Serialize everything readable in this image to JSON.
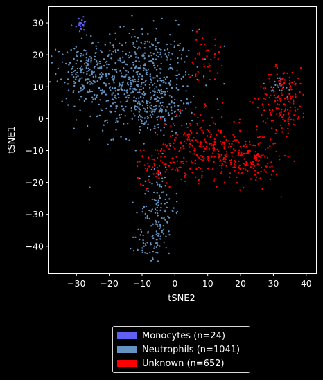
{
  "chart_data": {
    "type": "scatter",
    "xlabel": "tSNE2",
    "ylabel": "tSNE1",
    "xlim": [
      -38.5,
      43
    ],
    "ylim": [
      -48.5,
      35
    ],
    "xticks": [
      -30,
      -20,
      -10,
      0,
      10,
      20,
      30,
      40
    ],
    "yticks": [
      30,
      20,
      10,
      0,
      -10,
      -20,
      -30,
      -40
    ],
    "xtick_labels": [
      "−30",
      "−20",
      "−10",
      "0",
      "10",
      "20",
      "30",
      "40"
    ],
    "ytick_labels": [
      "30",
      "20",
      "10",
      "0",
      "−10",
      "−20",
      "−30",
      "−40"
    ],
    "legend_position": "below",
    "series": [
      {
        "name": "Monocytes (n=24)",
        "color": "#6060f0",
        "count": 24,
        "clusters": [
          {
            "cx": -28.5,
            "cy": 29.5,
            "sx": 1.0,
            "sy": 1.0,
            "n": 24
          }
        ]
      },
      {
        "name": "Neutrophils (n=1041)",
        "color": "#6393c0",
        "count": 1041,
        "clusters": [
          {
            "cx": -12,
            "cy": 12,
            "sx": 9,
            "sy": 8,
            "n": 620
          },
          {
            "cx": -28,
            "cy": 15,
            "sx": 4,
            "sy": 4,
            "n": 120
          },
          {
            "cx": -6,
            "cy": 2,
            "sx": 5,
            "sy": 4,
            "n": 110
          },
          {
            "cx": -5,
            "cy": -28,
            "sx": 2.5,
            "sy": 7,
            "n": 130
          },
          {
            "cx": -8,
            "cy": -40,
            "sx": 2,
            "sy": 2.5,
            "n": 40
          },
          {
            "cx": 31,
            "cy": 10,
            "sx": 3,
            "sy": 2,
            "n": 21
          }
        ]
      },
      {
        "name": "Unknown (n=652)",
        "color": "#ff0000",
        "count": 652,
        "clusters": [
          {
            "cx": 33,
            "cy": 6,
            "sx": 3.8,
            "sy": 5,
            "n": 160
          },
          {
            "cx": 8,
            "cy": -8,
            "sx": 6,
            "sy": 5,
            "n": 200
          },
          {
            "cx": 22,
            "cy": -13,
            "sx": 5,
            "sy": 4,
            "n": 180
          },
          {
            "cx": -4,
            "cy": -14,
            "sx": 4,
            "sy": 3,
            "n": 70
          },
          {
            "cx": 9,
            "cy": 19,
            "sx": 2.5,
            "sy": 3.5,
            "n": 42
          }
        ]
      }
    ]
  }
}
